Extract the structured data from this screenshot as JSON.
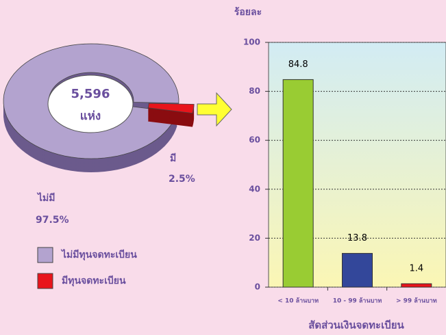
{
  "chart_data": [
    {
      "type": "pie",
      "categories": [
        "ไม่มี",
        "มี"
      ],
      "values": [
        97.5,
        2.5
      ],
      "value_labels": [
        "97.5%",
        "2.5%"
      ],
      "colors": [
        "#b3a3cf",
        "#e8141b"
      ],
      "center_label": [
        "5,596",
        "แห่ง"
      ],
      "legend": [
        "ไม่มีทุนจดทะเบียน",
        "มีทุนจดทะเบียน"
      ]
    },
    {
      "type": "bar",
      "ylabel": "ร้อยละ",
      "xlabel": "สัดส่วนเงินจดทะเบียน",
      "categories": [
        "< 10 ล้านบาท",
        "10 - 99 ล้านบาท",
        "> 99 ล้านบาท"
      ],
      "values": [
        84.8,
        13.8,
        1.4
      ],
      "colors": [
        "#99cc33",
        "#33479a",
        "#e8141b"
      ],
      "ylim": [
        0,
        100
      ],
      "yticks": [
        0,
        20,
        40,
        60,
        80,
        100
      ],
      "grid": true
    }
  ]
}
